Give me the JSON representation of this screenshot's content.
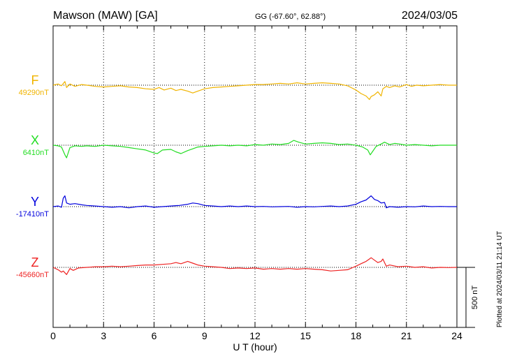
{
  "header": {
    "station": "Mawson (MAW)  [GA]",
    "coords": "GG (-67.60°,  62.88°)",
    "date": "2024/03/05"
  },
  "footer": {
    "plotted": "Plotted at 2024/03/11 21:14 UT"
  },
  "chart_data": {
    "type": "line",
    "title": "Mawson (MAW)  [GA]",
    "xlabel": "U T (hour)",
    "ylabel": "",
    "xlim": [
      0,
      24
    ],
    "xticks": [
      "0",
      "3",
      "6",
      "9",
      "12",
      "15",
      "18",
      "21",
      "24"
    ],
    "grid": true,
    "scale_bar": {
      "label": "500 nT",
      "nT": 500
    },
    "series": [
      {
        "name": "F",
        "baseline_label": "49290nT",
        "baseline_nT": 49290,
        "color": "#f0b400",
        "x": [
          0,
          0.3,
          0.5,
          0.7,
          0.8,
          1.0,
          1.3,
          1.7,
          2.0,
          2.5,
          3.0,
          3.5,
          4.0,
          4.5,
          5.0,
          5.5,
          6.0,
          6.3,
          6.6,
          7.0,
          7.3,
          7.6,
          8.0,
          8.3,
          8.6,
          9.0,
          9.5,
          10.0,
          10.5,
          11.0,
          11.5,
          12.0,
          12.5,
          13.0,
          13.5,
          14.0,
          14.5,
          15.0,
          15.5,
          16.0,
          16.5,
          17.0,
          17.5,
          18.0,
          18.3,
          18.6,
          18.8,
          18.9,
          19.1,
          19.3,
          19.5,
          19.6,
          19.8,
          20.0,
          20.3,
          20.6,
          21.0,
          21.3,
          21.6,
          22.0,
          22.5,
          23.0,
          23.5,
          24.0
        ],
        "y": [
          49290,
          49300,
          49285,
          49320,
          49270,
          49300,
          49280,
          49295,
          49290,
          49280,
          49275,
          49280,
          49285,
          49275,
          49270,
          49260,
          49255,
          49270,
          49250,
          49265,
          49245,
          49255,
          49240,
          49225,
          49240,
          49260,
          49270,
          49275,
          49280,
          49285,
          49290,
          49295,
          49295,
          49300,
          49305,
          49300,
          49310,
          49300,
          49305,
          49310,
          49305,
          49300,
          49285,
          49250,
          49220,
          49200,
          49170,
          49195,
          49210,
          49235,
          49200,
          49260,
          49280,
          49270,
          49285,
          49275,
          49295,
          49280,
          49290,
          49285,
          49290,
          49295,
          49290,
          49290
        ]
      },
      {
        "name": "X",
        "baseline_label": "6410nT",
        "baseline_nT": 6410,
        "color": "#22dd22",
        "x": [
          0,
          0.3,
          0.5,
          0.7,
          0.8,
          1.0,
          1.3,
          1.7,
          2.0,
          2.5,
          3.0,
          3.5,
          4.0,
          4.5,
          5.0,
          5.5,
          6.0,
          6.2,
          6.5,
          7.0,
          7.3,
          7.6,
          8.0,
          8.3,
          8.6,
          9.0,
          9.5,
          10.0,
          10.5,
          11.0,
          11.5,
          12.0,
          12.5,
          13.0,
          13.5,
          14.0,
          14.3,
          14.6,
          15.0,
          15.5,
          16.0,
          16.5,
          17.0,
          17.5,
          18.0,
          18.4,
          18.7,
          18.85,
          19.0,
          19.2,
          19.5,
          19.7,
          20.0,
          20.3,
          20.6,
          21.0,
          21.5,
          22.0,
          22.5,
          23.0,
          23.5,
          24.0
        ],
        "y": [
          6410,
          6405,
          6395,
          6330,
          6305,
          6390,
          6405,
          6400,
          6405,
          6400,
          6410,
          6405,
          6400,
          6390,
          6380,
          6370,
          6345,
          6340,
          6370,
          6375,
          6355,
          6340,
          6365,
          6380,
          6395,
          6400,
          6405,
          6410,
          6405,
          6410,
          6405,
          6415,
          6410,
          6420,
          6415,
          6425,
          6450,
          6435,
          6420,
          6425,
          6430,
          6425,
          6415,
          6420,
          6410,
          6395,
          6370,
          6330,
          6360,
          6400,
          6420,
          6435,
          6415,
          6425,
          6420,
          6410,
          6415,
          6410,
          6405,
          6410,
          6410,
          6410
        ]
      },
      {
        "name": "Y",
        "baseline_label": "-17410nT",
        "baseline_nT": -17410,
        "color": "#0000dd",
        "x": [
          0,
          0.3,
          0.5,
          0.6,
          0.7,
          0.8,
          1.0,
          1.3,
          1.7,
          2.0,
          2.5,
          3.0,
          3.5,
          4.0,
          4.5,
          5.0,
          5.5,
          6.0,
          6.5,
          7.0,
          7.5,
          8.0,
          8.3,
          8.6,
          9.0,
          9.5,
          10.0,
          10.5,
          11.0,
          11.5,
          12.0,
          12.5,
          13.0,
          13.5,
          14.0,
          14.5,
          15.0,
          15.5,
          16.0,
          16.5,
          17.0,
          17.5,
          18.0,
          18.3,
          18.6,
          18.9,
          19.1,
          19.3,
          19.5,
          19.7,
          19.8,
          20.0,
          20.5,
          21.0,
          21.5,
          22.0,
          22.5,
          23.0,
          23.5,
          24.0
        ],
        "y": [
          -17410,
          -17405,
          -17415,
          -17340,
          -17320,
          -17380,
          -17390,
          -17385,
          -17395,
          -17400,
          -17405,
          -17410,
          -17415,
          -17410,
          -17420,
          -17410,
          -17405,
          -17415,
          -17410,
          -17405,
          -17400,
          -17390,
          -17380,
          -17385,
          -17400,
          -17405,
          -17410,
          -17405,
          -17410,
          -17405,
          -17410,
          -17408,
          -17412,
          -17410,
          -17408,
          -17415,
          -17410,
          -17412,
          -17408,
          -17405,
          -17410,
          -17405,
          -17390,
          -17370,
          -17355,
          -17320,
          -17350,
          -17360,
          -17380,
          -17375,
          -17420,
          -17410,
          -17415,
          -17410,
          -17412,
          -17405,
          -17410,
          -17408,
          -17410,
          -17410
        ]
      },
      {
        "name": "Z",
        "baseline_label": "-45660nT",
        "baseline_nT": -45660,
        "color": "#ee2222",
        "x": [
          0,
          0.3,
          0.5,
          0.6,
          0.8,
          1.0,
          1.2,
          1.5,
          2.0,
          2.5,
          3.0,
          3.5,
          4.0,
          4.5,
          5.0,
          5.5,
          6.0,
          6.5,
          7.0,
          7.3,
          7.6,
          8.0,
          8.3,
          8.6,
          9.0,
          9.5,
          10.0,
          10.5,
          11.0,
          11.5,
          12.0,
          12.5,
          13.0,
          13.5,
          14.0,
          14.5,
          15.0,
          15.5,
          16.0,
          16.5,
          17.0,
          17.5,
          18.0,
          18.3,
          18.6,
          18.8,
          18.9,
          19.1,
          19.3,
          19.5,
          19.6,
          19.7,
          19.8,
          20.0,
          20.5,
          21.0,
          21.5,
          22.0,
          22.5,
          23.0,
          23.5,
          24.0
        ],
        "y": [
          -45660,
          -45680,
          -45700,
          -45690,
          -45720,
          -45670,
          -45685,
          -45665,
          -45660,
          -45655,
          -45655,
          -45650,
          -45655,
          -45650,
          -45645,
          -45640,
          -45640,
          -45635,
          -45630,
          -45620,
          -45630,
          -45610,
          -45625,
          -45640,
          -45650,
          -45655,
          -45660,
          -45670,
          -45665,
          -45670,
          -45665,
          -45675,
          -45670,
          -45675,
          -45670,
          -45675,
          -45670,
          -45675,
          -45680,
          -45690,
          -45685,
          -45680,
          -45650,
          -45630,
          -45610,
          -45590,
          -45580,
          -45600,
          -45620,
          -45610,
          -45590,
          -45620,
          -45650,
          -45640,
          -45655,
          -45650,
          -45660,
          -45655,
          -45665,
          -45660,
          -45662,
          -45660
        ]
      }
    ]
  }
}
